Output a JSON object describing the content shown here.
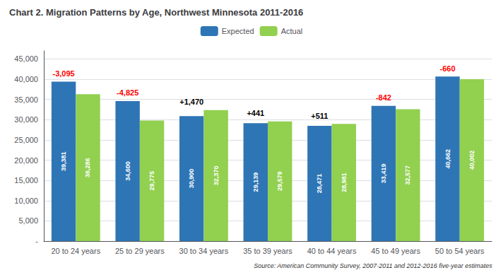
{
  "chart_data": {
    "type": "bar",
    "title": "Chart 2. Migration Patterns by Age, Northwest Minnesota 2011-2016",
    "categories": [
      "20 to 24 years",
      "25 to 29 years",
      "30 to 34 years",
      "35 to 39 years",
      "40 to 44 years",
      "45 to 49 years",
      "50 to 54 years"
    ],
    "series": [
      {
        "name": "Expected",
        "color": "#2E75B6",
        "values": [
          39381,
          34600,
          30900,
          29139,
          28471,
          33419,
          40662
        ],
        "value_labels": [
          "39,381",
          "34,600",
          "30,900",
          "29,139",
          "28,471",
          "33,419",
          "40,662"
        ]
      },
      {
        "name": "Actual",
        "color": "#92D050",
        "values": [
          36286,
          29775,
          32370,
          29579,
          28981,
          32577,
          40002
        ],
        "value_labels": [
          "36,286",
          "29,775",
          "32,370",
          "29,579",
          "28,981",
          "32,577",
          "40,002"
        ]
      }
    ],
    "data_labels": true,
    "annotations": [
      {
        "category": "20 to 24 years",
        "text": "-3,095",
        "color": "red"
      },
      {
        "category": "25 to 29 years",
        "text": "-4,825",
        "color": "red"
      },
      {
        "category": "30 to 34 years",
        "text": "+1,470",
        "color": "black"
      },
      {
        "category": "35 to 39 years",
        "text": "+441",
        "color": "black"
      },
      {
        "category": "40 to 44 years",
        "text": "+511",
        "color": "black"
      },
      {
        "category": "45 to 49 years",
        "text": "-842",
        "color": "red"
      },
      {
        "category": "50 to 54 years",
        "text": "-660",
        "color": "red"
      }
    ],
    "source": "Source: American Community Survey, 2007-2011 and 2012-2016 five-year estimates",
    "ylim": [
      0,
      47000
    ],
    "yticks": [
      {
        "value": 0,
        "label": "-"
      },
      {
        "value": 5000,
        "label": "5,000"
      },
      {
        "value": 10000,
        "label": "10,000"
      },
      {
        "value": 15000,
        "label": "15,000"
      },
      {
        "value": 20000,
        "label": "20,000"
      },
      {
        "value": 25000,
        "label": "25,000"
      },
      {
        "value": 30000,
        "label": "30,000"
      },
      {
        "value": 35000,
        "label": "35,000"
      },
      {
        "value": 40000,
        "label": "40,000"
      },
      {
        "value": 45000,
        "label": "45,000"
      }
    ],
    "grid": true,
    "legend": "top"
  }
}
